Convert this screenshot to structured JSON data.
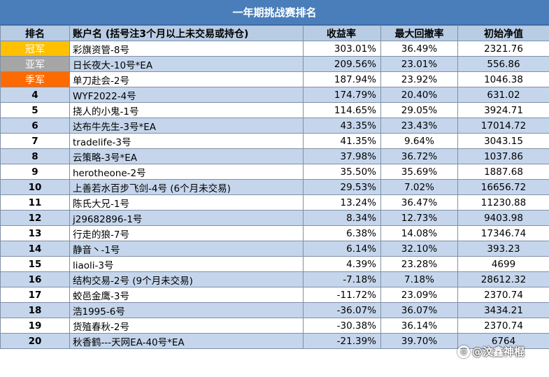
{
  "title": "一年期挑战赛排名",
  "headers": {
    "rank": "排名",
    "account": "账户名 (括号注3个月以上未交易或持仓)",
    "return": "收益率",
    "max_drawdown": "最大回撤率",
    "initial_nav": "初始净值"
  },
  "medal_colors": {
    "gold": "#ffc000",
    "silver": "#a6a6a6",
    "bronze": "#ff6a00"
  },
  "rows": [
    {
      "rank": "冠军",
      "account": "彩旗资管-8号",
      "return": "303.01%",
      "max_drawdown": "36.49%",
      "initial_nav": "2321.76"
    },
    {
      "rank": "亚军",
      "account": "日长夜大-10号*EA",
      "return": "209.56%",
      "max_drawdown": "23.01%",
      "initial_nav": "556.86"
    },
    {
      "rank": "季军",
      "account": "单刀赴会-2号",
      "return": "187.94%",
      "max_drawdown": "23.92%",
      "initial_nav": "1046.38"
    },
    {
      "rank": "4",
      "account": "WYF2022-4号",
      "return": "174.79%",
      "max_drawdown": "20.40%",
      "initial_nav": "631.02"
    },
    {
      "rank": "5",
      "account": "挠人的小鬼-1号",
      "return": "114.65%",
      "max_drawdown": "29.05%",
      "initial_nav": "3924.71"
    },
    {
      "rank": "6",
      "account": "达布牛先生-3号*EA",
      "return": "43.35%",
      "max_drawdown": "23.43%",
      "initial_nav": "17014.72"
    },
    {
      "rank": "7",
      "account": "tradelife-3号",
      "return": "41.35%",
      "max_drawdown": "9.64%",
      "initial_nav": "3043.15"
    },
    {
      "rank": "8",
      "account": "云策略-3号*EA",
      "return": "37.98%",
      "max_drawdown": "36.72%",
      "initial_nav": "1037.86"
    },
    {
      "rank": "9",
      "account": "herotheone-2号",
      "return": "35.50%",
      "max_drawdown": "35.69%",
      "initial_nav": "1887.68"
    },
    {
      "rank": "10",
      "account": "上善若水百步飞剑-4号 (6个月未交易)",
      "return": "29.53%",
      "max_drawdown": "7.02%",
      "initial_nav": "16656.72"
    },
    {
      "rank": "11",
      "account": "陈氏大兄-1号",
      "return": "13.24%",
      "max_drawdown": "36.47%",
      "initial_nav": "11230.88"
    },
    {
      "rank": "12",
      "account": "j29682896-1号",
      "return": "8.34%",
      "max_drawdown": "12.73%",
      "initial_nav": "9403.98"
    },
    {
      "rank": "13",
      "account": "行走的狼-7号",
      "return": "6.38%",
      "max_drawdown": "14.08%",
      "initial_nav": "17346.74"
    },
    {
      "rank": "14",
      "account": "静音丶-1号",
      "return": "6.14%",
      "max_drawdown": "32.10%",
      "initial_nav": "393.23"
    },
    {
      "rank": "15",
      "account": "liaoli-3号",
      "return": "4.39%",
      "max_drawdown": "23.28%",
      "initial_nav": "4699"
    },
    {
      "rank": "16",
      "account": "结构交易-2号 (9个月未交易)",
      "return": "-7.18%",
      "max_drawdown": "7.18%",
      "initial_nav": "28612.32"
    },
    {
      "rank": "17",
      "account": "蛟邑金鹰-3号",
      "return": "-11.72%",
      "max_drawdown": "23.09%",
      "initial_nav": "2370.74"
    },
    {
      "rank": "18",
      "account": "浩1995-6号",
      "return": "-36.07%",
      "max_drawdown": "36.07%",
      "initial_nav": "3434.21"
    },
    {
      "rank": "19",
      "account": "货殖春秋-2号",
      "return": "-30.38%",
      "max_drawdown": "36.14%",
      "initial_nav": "2370.74"
    },
    {
      "rank": "20",
      "account": "秋香鹤---天网EA-40号*EA",
      "return": "-21.39%",
      "max_drawdown": "39.70%",
      "initial_nav": "6764"
    }
  ],
  "watermark": {
    "text": "@汶鑫神棍"
  }
}
